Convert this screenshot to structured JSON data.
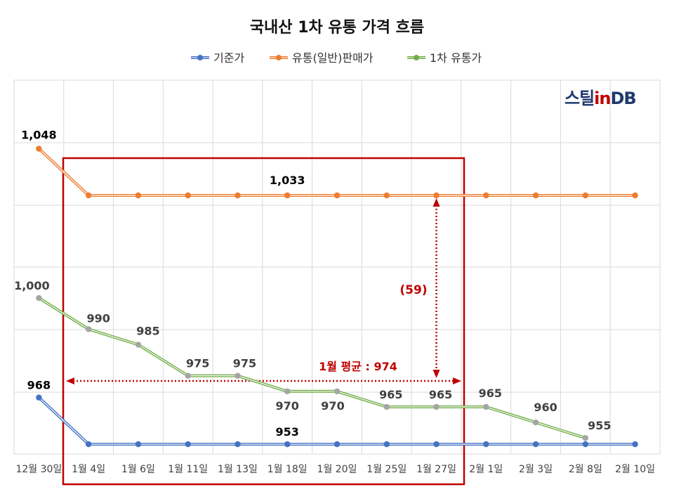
{
  "chart_data": {
    "type": "line",
    "title": "국내산 1차 유통 가격 흐름",
    "xlabel": "",
    "ylabel": "",
    "ylim": [
      900,
      1070
    ],
    "grid": true,
    "legend_position": "top",
    "categories": [
      "12월 30일",
      "1월 4일",
      "1월 6일",
      "1월 11일",
      "1월 13일",
      "1월 18일",
      "1월 20일",
      "1월 25일",
      "1월 27일",
      "2월 1일",
      "2월 3일",
      "2월 8일",
      "2월 10일"
    ],
    "series": [
      {
        "name": "기준가",
        "color": "#4472C4",
        "values": [
          968,
          953,
          953,
          953,
          953,
          953,
          953,
          953,
          953,
          953,
          953,
          953,
          953
        ]
      },
      {
        "name": "유통(일반)판매가",
        "color": "#ED7D31",
        "values": [
          1048,
          1033,
          1033,
          1033,
          1033,
          1033,
          1033,
          1033,
          1033,
          1033,
          1033,
          1033,
          1033
        ]
      },
      {
        "name": "1차 유통가",
        "color": "#70AD47",
        "values": [
          1000,
          990,
          985,
          975,
          975,
          970,
          970,
          965,
          965,
          965,
          960,
          955,
          null
        ]
      }
    ],
    "data_labels": [
      {
        "series": 0,
        "index": 0,
        "text": "968",
        "bold": true
      },
      {
        "series": 0,
        "index": 5,
        "text": "953",
        "bold": true
      },
      {
        "series": 1,
        "index": 0,
        "text": "1,048",
        "bold": true
      },
      {
        "series": 1,
        "index": 5,
        "text": "1,033",
        "bold": true
      },
      {
        "series": 2,
        "index": 0,
        "text": "1,000"
      },
      {
        "series": 2,
        "index": 1,
        "text": "990"
      },
      {
        "series": 2,
        "index": 2,
        "text": "985"
      },
      {
        "series": 2,
        "index": 3,
        "text": "975"
      },
      {
        "series": 2,
        "index": 4,
        "text": "975"
      },
      {
        "series": 2,
        "index": 5,
        "text": "970"
      },
      {
        "series": 2,
        "index": 6,
        "text": "970"
      },
      {
        "series": 2,
        "index": 7,
        "text": "965"
      },
      {
        "series": 2,
        "index": 8,
        "text": "965"
      },
      {
        "series": 2,
        "index": 9,
        "text": "965"
      },
      {
        "series": 2,
        "index": 10,
        "text": "960"
      },
      {
        "series": 2,
        "index": 11,
        "text": "955"
      }
    ],
    "annotations": {
      "gap_label": "(59)",
      "average_label": "1월 평균 : 974",
      "average_value": 974,
      "highlight_color": "#C00000",
      "highlight_range": [
        "1월 4일",
        "1월 27일"
      ]
    }
  },
  "branding": {
    "logo_text": "스틸in DB",
    "colors": {
      "dark": "#1F3A6E",
      "accent": "#C00000"
    }
  }
}
